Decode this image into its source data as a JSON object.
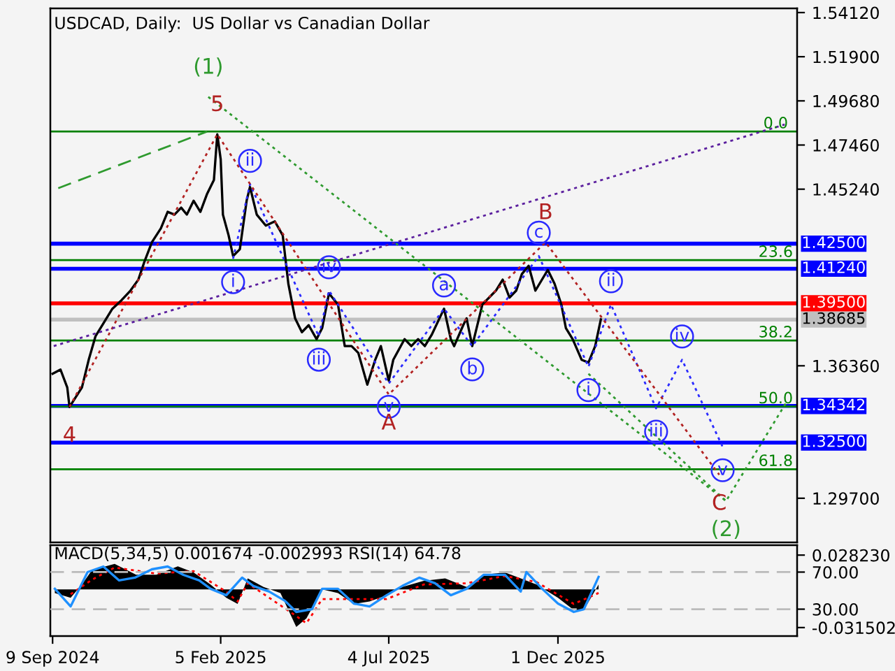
{
  "chart_data": [
    {
      "type": "line",
      "title": "USDCAD, Daily:  US Dollar vs Canadian Dollar",
      "xlim": [
        "2024-09-07",
        "2026-07-01"
      ],
      "ylim": [
        1.2748,
        1.5433
      ],
      "tick_labels": "y",
      "yticks": [
        {
          "value": 1.5412,
          "label": "1.54120"
        },
        {
          "value": 1.519,
          "label": "1.51900"
        },
        {
          "value": 1.4968,
          "label": "1.49680"
        },
        {
          "value": 1.4746,
          "label": "1.47460"
        },
        {
          "value": 1.4524,
          "label": "1.45240"
        },
        {
          "value": 1.3636,
          "label": "1.36360"
        },
        {
          "value": 1.297,
          "label": "1.29700"
        }
      ],
      "series": [
        {
          "color": "#000000",
          "line_style": "solid",
          "marker": "none",
          "x": [
            "2024-09-09",
            "2024-09-16",
            "2024-09-22",
            "2024-09-24",
            "2024-10-05",
            "2024-10-11",
            "2024-10-17",
            "2024-10-23",
            "2024-11-01",
            "2024-11-09",
            "2024-11-17",
            "2024-11-24",
            "2024-11-29",
            "2024-12-06",
            "2024-12-14",
            "2024-12-20",
            "2024-12-26",
            "2025-01-01",
            "2025-01-06",
            "2025-01-12",
            "2025-01-18",
            "2025-01-24",
            "2025-01-30",
            "2025-02-02",
            "2025-02-05",
            "2025-02-07",
            "2025-02-12",
            "2025-02-16",
            "2025-02-22",
            "2025-02-28",
            "2025-03-03",
            "2025-03-09",
            "2025-03-17",
            "2025-03-25",
            "2025-04-01",
            "2025-04-06",
            "2025-04-12",
            "2025-04-18",
            "2025-04-24",
            "2025-05-01",
            "2025-05-06",
            "2025-05-12",
            "2025-05-20",
            "2025-05-26",
            "2025-06-01",
            "2025-06-07",
            "2025-06-15",
            "2025-06-22",
            "2025-06-27",
            "2025-07-04",
            "2025-07-08",
            "2025-07-18",
            "2025-07-24",
            "2025-07-30",
            "2025-08-05",
            "2025-08-11",
            "2025-08-22",
            "2025-08-28",
            "2025-08-31",
            "2025-09-08",
            "2025-09-11",
            "2025-09-16",
            "2025-09-25",
            "2025-10-07",
            "2025-10-13",
            "2025-10-19",
            "2025-10-25",
            "2025-10-30",
            "2025-11-05",
            "2025-11-11",
            "2025-11-22",
            "2025-11-28",
            "2025-12-04",
            "2025-12-08",
            "2025-12-14",
            "2025-12-22",
            "2025-12-28",
            "2026-01-03",
            "2026-01-08"
          ],
          "values": [
            1.3596,
            1.3617,
            1.3527,
            1.3429,
            1.3527,
            1.3666,
            1.3784,
            1.384,
            1.3923,
            1.3965,
            1.4014,
            1.4069,
            1.4153,
            1.4257,
            1.4327,
            1.441,
            1.4396,
            1.4431,
            1.4396,
            1.4466,
            1.441,
            1.4501,
            1.457,
            1.48,
            1.4675,
            1.4396,
            1.4292,
            1.4188,
            1.4222,
            1.4466,
            1.4535,
            1.4396,
            1.4341,
            1.4362,
            1.4292,
            1.4048,
            1.3874,
            1.3805,
            1.384,
            1.377,
            1.3826,
            1.4,
            1.3944,
            1.3735,
            1.3735,
            1.3701,
            1.3541,
            1.3666,
            1.3735,
            1.3561,
            1.3666,
            1.377,
            1.3735,
            1.377,
            1.3735,
            1.3791,
            1.3923,
            1.377,
            1.3735,
            1.384,
            1.3874,
            1.3735,
            1.3944,
            1.4014,
            1.4069,
            1.3979,
            1.4014,
            1.4097,
            1.4139,
            1.4014,
            1.4118,
            1.4048,
            1.3944,
            1.3826,
            1.377,
            1.3666,
            1.3652,
            1.3735,
            1.3869
          ]
        },
        {
          "color": "#2a2aff",
          "line_style": "dotted",
          "marker": "none",
          "x": [
            "2025-02-16",
            "2025-03-03",
            "2025-05-03",
            "2025-05-12",
            "2025-07-04",
            "2025-08-22",
            "2025-09-16",
            "2025-11-14",
            "2025-12-28",
            "2026-01-17",
            "2026-02-26",
            "2026-03-21",
            "2026-04-26"
          ],
          "values": [
            1.4174,
            1.4549,
            1.3784,
            1.4014,
            1.3547,
            1.3923,
            1.3735,
            1.4188,
            1.3631,
            1.3944,
            1.3422,
            1.3666,
            1.3228
          ]
        },
        {
          "color": "#b22222",
          "line_style": "dotted",
          "marker": "none",
          "x": [
            "2024-09-24",
            "2025-02-02",
            "2025-07-04",
            "2025-11-20",
            "2026-04-23"
          ],
          "values": [
            1.3429,
            1.48,
            1.3492,
            1.4257,
            1.3088
          ]
        },
        {
          "color": "#2e9a2e",
          "line_style": "dotted",
          "marker": "none",
          "x": [
            "2025-01-25",
            "2026-04-29",
            "2026-06-22"
          ],
          "values": [
            1.4988,
            1.2956,
            1.3457
          ]
        },
        {
          "color": "#2e9a2e",
          "line_style": "dotted",
          "marker": "none",
          "x": [
            "2025-12-28",
            "2026-04-29"
          ],
          "values": [
            1.3596,
            1.2956
          ]
        },
        {
          "color": "#2e9a2e",
          "line_style": "dashed",
          "marker": "none",
          "x": [
            "2024-09-14",
            "2025-01-24"
          ],
          "values": [
            1.4529,
            1.4814
          ]
        },
        {
          "color": "#5b1f9e",
          "line_style": "dotted",
          "marker": "none",
          "x": [
            "2024-09-10",
            "2026-06-20"
          ],
          "values": [
            1.3735,
            1.4849
          ]
        }
      ],
      "ref_lines": [
        {
          "axis": "y",
          "value": 1.4814,
          "color": "#008000"
        },
        {
          "axis": "y",
          "value": 1.4167,
          "color": "#008000"
        },
        {
          "axis": "y",
          "value": 1.3763,
          "color": "#008000"
        },
        {
          "axis": "y",
          "value": 1.3431,
          "color": "#008000"
        },
        {
          "axis": "y",
          "value": 1.3116,
          "color": "#008000"
        },
        {
          "axis": "y",
          "value": 1.38685,
          "label": "1.38685",
          "color": "#c0c0c0"
        },
        {
          "axis": "y",
          "value": 1.425,
          "label": "1.42500",
          "color": "#0000ff"
        },
        {
          "axis": "y",
          "value": 1.4124,
          "label": "1.41240",
          "color": "#0000ff"
        },
        {
          "axis": "y",
          "value": 1.395,
          "label": "1.39500",
          "color": "#ff0000"
        },
        {
          "axis": "y",
          "value": 1.34342,
          "label": "1.34342",
          "color": "#0000ff"
        },
        {
          "axis": "y",
          "value": 1.325,
          "label": "1.32500",
          "color": "#0000ff"
        }
      ],
      "annotations": [
        {
          "text": "i",
          "x": "2025-02-16",
          "y": 1.4174
        },
        {
          "text": "ii",
          "x": "2025-03-03",
          "y": 1.4549
        },
        {
          "text": "iii",
          "x": "2025-05-03",
          "y": 1.3784
        },
        {
          "text": "iv",
          "x": "2025-05-12",
          "y": 1.4014
        },
        {
          "text": "v",
          "x": "2025-07-04",
          "y": 1.3547
        },
        {
          "text": "a",
          "x": "2025-08-22",
          "y": 1.3923
        },
        {
          "text": "b",
          "x": "2025-09-16",
          "y": 1.3735
        },
        {
          "text": "c",
          "x": "2025-11-14",
          "y": 1.4188
        },
        {
          "text": "i",
          "x": "2025-12-28",
          "y": 1.3631
        },
        {
          "text": "ii",
          "x": "2026-01-17",
          "y": 1.3944
        },
        {
          "text": "iii",
          "x": "2026-02-26",
          "y": 1.3422
        },
        {
          "text": "iv",
          "x": "2026-03-21",
          "y": 1.3666
        },
        {
          "text": "v",
          "x": "2026-04-26",
          "y": 1.3228
        },
        {
          "text": "4",
          "x": "2024-09-24",
          "y": 1.3429
        },
        {
          "text": "5",
          "x": "2025-02-02",
          "y": 1.48
        },
        {
          "text": "A",
          "x": "2025-07-04",
          "y": 1.3492
        },
        {
          "text": "B",
          "x": "2025-11-20",
          "y": 1.4257
        },
        {
          "text": "C",
          "x": "2026-04-23",
          "y": 1.3088
        },
        {
          "text": "(1)",
          "x": "2025-01-25",
          "y": 1.4988
        },
        {
          "text": "(2)",
          "x": "2026-04-29",
          "y": 1.2956
        },
        {
          "text": "0.0",
          "x": "2026-06-12",
          "y": 1.4814
        },
        {
          "text": "23.6",
          "x": "2026-06-12",
          "y": 1.4167
        },
        {
          "text": "38.2",
          "x": "2026-06-12",
          "y": 1.3763
        },
        {
          "text": "50.0",
          "x": "2026-06-12",
          "y": 1.3431
        },
        {
          "text": "61.8",
          "x": "2026-06-12",
          "y": 1.3116
        }
      ]
    },
    {
      "type": "area",
      "title": "MACD(5,34,5) 0.001674 -0.002993 RSI(14) 64.78",
      "xlim": [
        "2024-09-07",
        "2026-07-01"
      ],
      "xticks": [
        {
          "value": "2024-09-09",
          "label": "9 Sep 2024"
        },
        {
          "value": "2025-02-05",
          "label": "5 Feb 2025"
        },
        {
          "value": "2025-07-04",
          "label": "4 Jul 2025"
        },
        {
          "value": "2025-12-01",
          "label": "1 Dec 2025"
        }
      ],
      "ylim": [
        -0.0385,
        0.0364
      ],
      "yticks": [
        {
          "value": 0.02823,
          "label": "0.028230"
        },
        {
          "value": -0.031502,
          "label": "-0.031502"
        }
      ],
      "y2lim": [
        1,
        99
      ],
      "y2ticks": [
        {
          "value": 70,
          "label": "70.00"
        },
        {
          "value": 30,
          "label": "30.00"
        }
      ],
      "series": [
        {
          "type": "area",
          "color": "#000000",
          "x": [
            "2024-09-11",
            "2024-09-25",
            "2024-10-05",
            "2024-10-14",
            "2024-11-03",
            "2024-11-22",
            "2024-12-10",
            "2024-12-29",
            "2025-01-12",
            "2025-01-27",
            "2025-02-10",
            "2025-02-20",
            "2025-03-01",
            "2025-03-15",
            "2025-03-30",
            "2025-04-13",
            "2025-04-22",
            "2025-05-06",
            "2025-05-20",
            "2025-06-03",
            "2025-06-17",
            "2025-07-02",
            "2025-07-16",
            "2025-08-04",
            "2025-08-23",
            "2025-09-11",
            "2025-09-26",
            "2025-10-15",
            "2025-10-29",
            "2025-11-12",
            "2025-12-01",
            "2025-12-15",
            "2025-12-24",
            "2026-01-06"
          ],
          "values": [
            -0.003,
            -0.007,
            0.004,
            0.016,
            0.021,
            0.012,
            0.012,
            0.019,
            0.014,
            0.004,
            -0.007,
            -0.012,
            0.009,
            0.002,
            -0.003,
            -0.031,
            -0.024,
            0,
            -0.003,
            -0.012,
            -0.01,
            -0.005,
            0.002,
            0.007,
            0.009,
            0.002,
            0.012,
            0.014,
            0.009,
            0.004,
            -0.007,
            -0.017,
            -0.017,
            0.004
          ]
        },
        {
          "type": "line",
          "color": "#ff0000",
          "line_style": "dotted",
          "x": [
            "2024-09-25",
            "2024-10-14",
            "2024-11-03",
            "2024-12-10",
            "2025-01-12",
            "2025-02-10",
            "2025-02-20",
            "2025-03-01",
            "2025-04-13",
            "2025-04-22",
            "2025-05-06",
            "2025-06-03",
            "2025-07-02",
            "2025-08-04",
            "2025-09-11",
            "2025-10-15",
            "2025-11-12",
            "2025-12-15",
            "2026-01-06"
          ],
          "values": [
            -0.004,
            0.008,
            0.018,
            0.013,
            0.015,
            -0.002,
            -0.01,
            0.005,
            -0.022,
            -0.028,
            -0.008,
            -0.008,
            -0.008,
            0.004,
            0.005,
            0.011,
            0.006,
            -0.012,
            -0.003
          ]
        },
        {
          "type": "line",
          "axis": "y2",
          "color": "#1e90ff",
          "line_style": "solid",
          "x": [
            "2024-09-11",
            "2024-09-25",
            "2024-10-10",
            "2024-10-24",
            "2024-11-07",
            "2024-11-21",
            "2024-12-06",
            "2024-12-20",
            "2025-01-03",
            "2025-01-17",
            "2025-01-27",
            "2025-02-10",
            "2025-02-24",
            "2025-03-06",
            "2025-03-20",
            "2025-04-03",
            "2025-04-13",
            "2025-04-27",
            "2025-05-06",
            "2025-05-20",
            "2025-06-03",
            "2025-06-17",
            "2025-07-02",
            "2025-07-16",
            "2025-07-31",
            "2025-08-14",
            "2025-08-28",
            "2025-09-11",
            "2025-09-26",
            "2025-10-15",
            "2025-10-29",
            "2025-11-03",
            "2025-11-17",
            "2025-12-01",
            "2025-12-15",
            "2025-12-24",
            "2026-01-06"
          ],
          "values": [
            52,
            33,
            70,
            76,
            61,
            64,
            73,
            76,
            67,
            61,
            52,
            45,
            64,
            55,
            49,
            39,
            27,
            30,
            52,
            52,
            36,
            33,
            45,
            55,
            64,
            58,
            45,
            52,
            67,
            67,
            49,
            70,
            52,
            36,
            27,
            30,
            64.78
          ]
        }
      ],
      "ref_lines": [
        {
          "axis": "y2",
          "value": 70,
          "color": "#bbbbbb",
          "line_style": "dashed"
        },
        {
          "axis": "y2",
          "value": 30,
          "color": "#bbbbbb",
          "line_style": "dashed"
        }
      ]
    }
  ]
}
